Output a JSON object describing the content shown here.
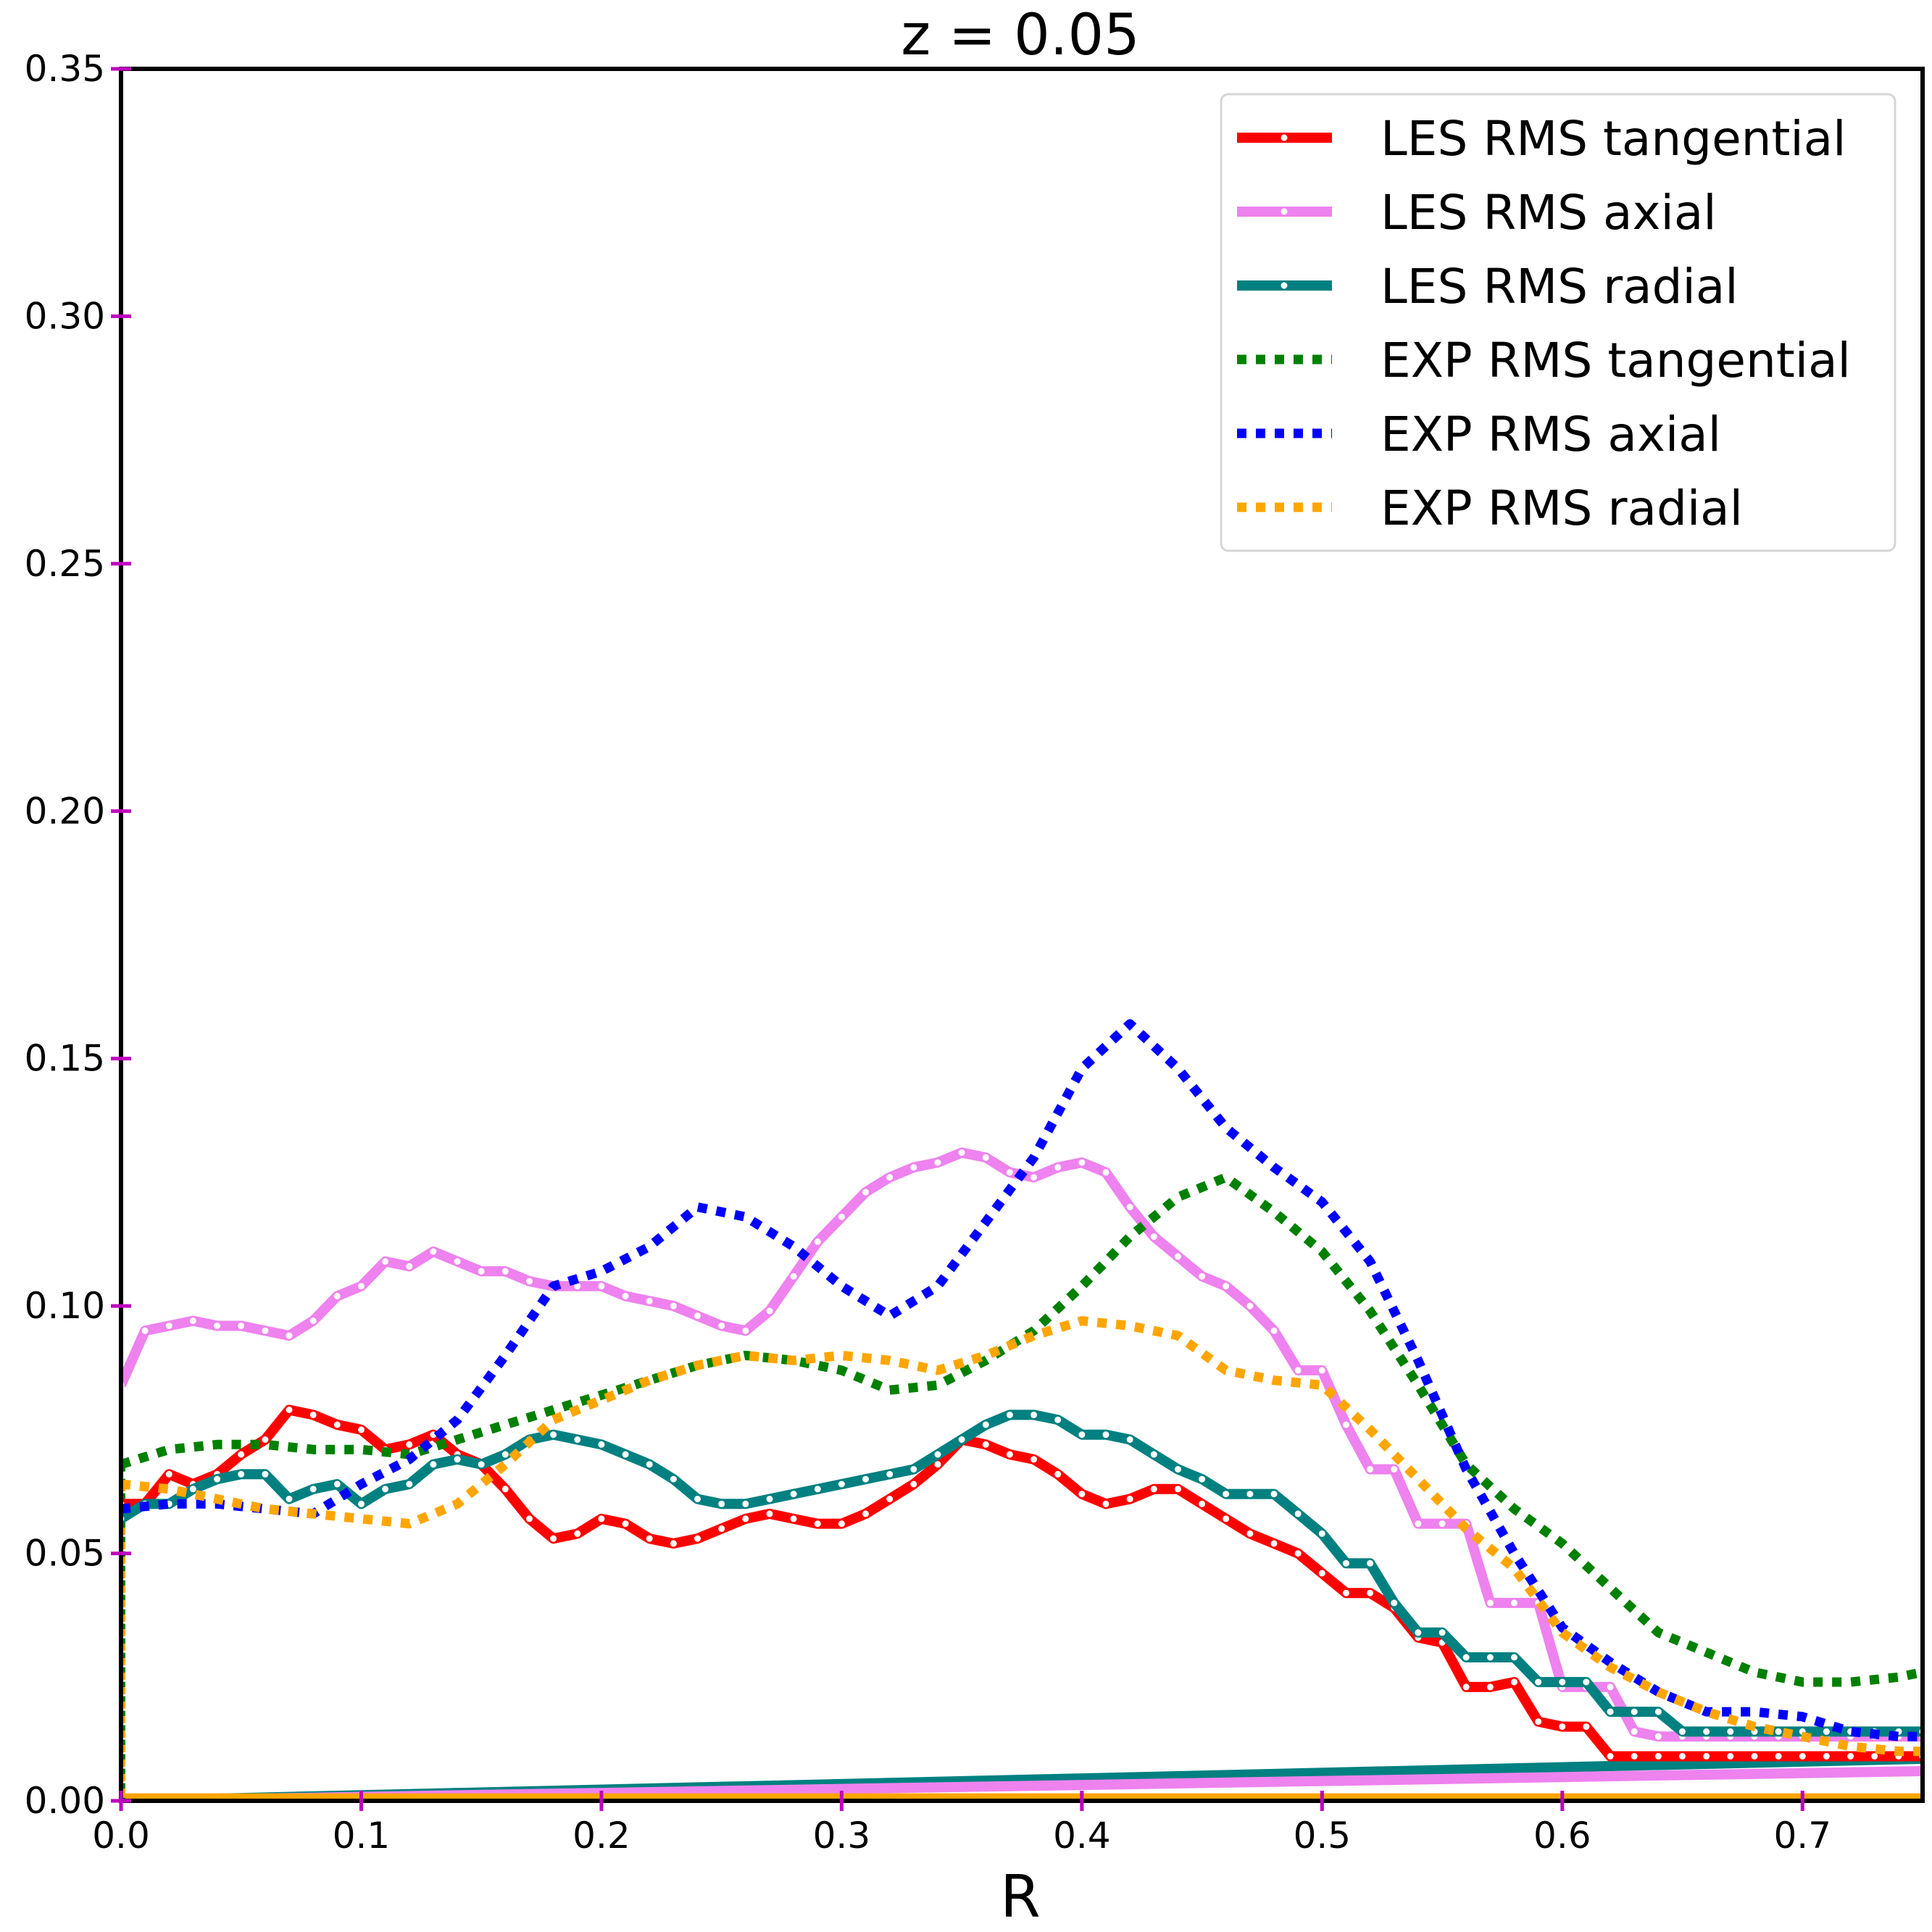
{
  "chart_data": {
    "type": "line",
    "title": "z = 0.05",
    "xlabel": "R",
    "ylabel": "",
    "xlim": [
      0,
      0.75
    ],
    "ylim": [
      0,
      0.35
    ],
    "x_ticks": [
      "0.0",
      "0.1",
      "0.2",
      "0.3",
      "0.4",
      "0.5",
      "0.6",
      "0.7"
    ],
    "y_ticks": [
      "0.00",
      "0.05",
      "0.10",
      "0.15",
      "0.20",
      "0.25",
      "0.30",
      "0.35"
    ],
    "grid": false,
    "legend_position": "top-right",
    "series": [
      {
        "name": "LES RMS tangential",
        "color": "#ff0000",
        "style": "solid-dots",
        "x": [
          0.0,
          0.01,
          0.02,
          0.03,
          0.04,
          0.05,
          0.06,
          0.07,
          0.08,
          0.09,
          0.1,
          0.11,
          0.12,
          0.13,
          0.14,
          0.15,
          0.16,
          0.17,
          0.18,
          0.19,
          0.2,
          0.21,
          0.22,
          0.23,
          0.24,
          0.25,
          0.26,
          0.27,
          0.28,
          0.29,
          0.3,
          0.31,
          0.32,
          0.33,
          0.34,
          0.35,
          0.36,
          0.37,
          0.38,
          0.39,
          0.4,
          0.41,
          0.42,
          0.43,
          0.44,
          0.45,
          0.46,
          0.47,
          0.48,
          0.49,
          0.5,
          0.51,
          0.52,
          0.53,
          0.54,
          0.55,
          0.56,
          0.57,
          0.58,
          0.59,
          0.6,
          0.61,
          0.62,
          0.63,
          0.64,
          0.65,
          0.66,
          0.67,
          0.68,
          0.69,
          0.7,
          0.71,
          0.72,
          0.73,
          0.74,
          0.75
        ],
        "y": [
          0.06,
          0.06,
          0.066,
          0.064,
          0.066,
          0.07,
          0.073,
          0.079,
          0.078,
          0.076,
          0.075,
          0.071,
          0.072,
          0.074,
          0.07,
          0.068,
          0.063,
          0.057,
          0.053,
          0.054,
          0.057,
          0.056,
          0.053,
          0.052,
          0.053,
          0.055,
          0.057,
          0.058,
          0.057,
          0.056,
          0.056,
          0.058,
          0.061,
          0.064,
          0.068,
          0.073,
          0.072,
          0.07,
          0.069,
          0.066,
          0.062,
          0.06,
          0.061,
          0.063,
          0.063,
          0.06,
          0.057,
          0.054,
          0.052,
          0.05,
          0.046,
          0.042,
          0.042,
          0.039,
          0.033,
          0.032,
          0.023,
          0.023,
          0.024,
          0.016,
          0.015,
          0.015,
          0.009,
          0.009,
          0.009,
          0.009,
          0.009,
          0.009,
          0.009,
          0.009,
          0.009,
          0.009,
          0.009,
          0.009,
          0.009,
          0.009
        ]
      },
      {
        "name": "LES RMS axial",
        "color": "#ee82ee",
        "style": "solid-dots",
        "x": [
          0.0,
          0.01,
          0.02,
          0.03,
          0.04,
          0.05,
          0.06,
          0.07,
          0.08,
          0.09,
          0.1,
          0.11,
          0.12,
          0.13,
          0.14,
          0.15,
          0.16,
          0.17,
          0.18,
          0.19,
          0.2,
          0.21,
          0.22,
          0.23,
          0.24,
          0.25,
          0.26,
          0.27,
          0.28,
          0.29,
          0.3,
          0.31,
          0.32,
          0.33,
          0.34,
          0.35,
          0.36,
          0.37,
          0.38,
          0.39,
          0.4,
          0.41,
          0.42,
          0.43,
          0.44,
          0.45,
          0.46,
          0.47,
          0.48,
          0.49,
          0.5,
          0.51,
          0.52,
          0.53,
          0.54,
          0.55,
          0.56,
          0.57,
          0.58,
          0.59,
          0.6,
          0.61,
          0.62,
          0.63,
          0.64,
          0.65,
          0.66,
          0.67,
          0.68,
          0.69,
          0.7,
          0.71,
          0.72,
          0.73,
          0.74,
          0.75
        ],
        "y": [
          0.084,
          0.095,
          0.096,
          0.097,
          0.096,
          0.096,
          0.095,
          0.094,
          0.097,
          0.102,
          0.104,
          0.109,
          0.108,
          0.111,
          0.109,
          0.107,
          0.107,
          0.105,
          0.104,
          0.104,
          0.104,
          0.102,
          0.101,
          0.1,
          0.098,
          0.096,
          0.095,
          0.099,
          0.106,
          0.113,
          0.118,
          0.123,
          0.126,
          0.128,
          0.129,
          0.131,
          0.13,
          0.127,
          0.126,
          0.128,
          0.129,
          0.127,
          0.12,
          0.114,
          0.11,
          0.106,
          0.104,
          0.1,
          0.095,
          0.087,
          0.087,
          0.076,
          0.067,
          0.067,
          0.056,
          0.056,
          0.056,
          0.04,
          0.04,
          0.04,
          0.023,
          0.023,
          0.023,
          0.014,
          0.013,
          0.013,
          0.013,
          0.013,
          0.013,
          0.013,
          0.013,
          0.013,
          0.013,
          0.013,
          0.013,
          0.013
        ]
      },
      {
        "name": "LES RMS radial",
        "color": "#008080",
        "style": "solid-dots",
        "x": [
          0.0,
          0.01,
          0.02,
          0.03,
          0.04,
          0.05,
          0.06,
          0.07,
          0.08,
          0.09,
          0.1,
          0.11,
          0.12,
          0.13,
          0.14,
          0.15,
          0.16,
          0.17,
          0.18,
          0.19,
          0.2,
          0.21,
          0.22,
          0.23,
          0.24,
          0.25,
          0.26,
          0.27,
          0.28,
          0.29,
          0.3,
          0.31,
          0.32,
          0.33,
          0.34,
          0.35,
          0.36,
          0.37,
          0.38,
          0.39,
          0.4,
          0.41,
          0.42,
          0.43,
          0.44,
          0.45,
          0.46,
          0.47,
          0.48,
          0.49,
          0.5,
          0.51,
          0.52,
          0.53,
          0.54,
          0.55,
          0.56,
          0.57,
          0.58,
          0.59,
          0.6,
          0.61,
          0.62,
          0.63,
          0.64,
          0.65,
          0.66,
          0.67,
          0.68,
          0.69,
          0.7,
          0.71,
          0.72,
          0.73,
          0.74,
          0.75
        ],
        "y": [
          0.057,
          0.06,
          0.06,
          0.063,
          0.065,
          0.066,
          0.066,
          0.061,
          0.063,
          0.064,
          0.06,
          0.063,
          0.064,
          0.068,
          0.069,
          0.068,
          0.07,
          0.073,
          0.074,
          0.073,
          0.072,
          0.07,
          0.068,
          0.065,
          0.061,
          0.06,
          0.06,
          0.061,
          0.062,
          0.063,
          0.064,
          0.065,
          0.066,
          0.067,
          0.07,
          0.073,
          0.076,
          0.078,
          0.078,
          0.077,
          0.074,
          0.074,
          0.073,
          0.07,
          0.067,
          0.065,
          0.062,
          0.062,
          0.062,
          0.058,
          0.054,
          0.048,
          0.048,
          0.04,
          0.034,
          0.034,
          0.029,
          0.029,
          0.029,
          0.024,
          0.024,
          0.024,
          0.018,
          0.018,
          0.018,
          0.014,
          0.014,
          0.014,
          0.014,
          0.014,
          0.014,
          0.014,
          0.014,
          0.014,
          0.014,
          0.014
        ]
      },
      {
        "name": "EXP RMS tangential",
        "color": "#008000",
        "style": "dotted",
        "x": [
          0.0,
          0.02,
          0.04,
          0.06,
          0.08,
          0.1,
          0.12,
          0.14,
          0.16,
          0.18,
          0.2,
          0.22,
          0.24,
          0.26,
          0.28,
          0.3,
          0.32,
          0.34,
          0.36,
          0.38,
          0.4,
          0.42,
          0.44,
          0.46,
          0.48,
          0.5,
          0.52,
          0.54,
          0.56,
          0.58,
          0.6,
          0.62,
          0.64,
          0.66,
          0.68,
          0.7,
          0.72,
          0.74,
          0.75
        ],
        "y": [
          0.068,
          0.071,
          0.072,
          0.072,
          0.071,
          0.071,
          0.07,
          0.073,
          0.076,
          0.079,
          0.082,
          0.085,
          0.088,
          0.09,
          0.089,
          0.087,
          0.083,
          0.084,
          0.089,
          0.095,
          0.104,
          0.114,
          0.122,
          0.126,
          0.119,
          0.111,
          0.099,
          0.084,
          0.068,
          0.059,
          0.052,
          0.043,
          0.034,
          0.03,
          0.026,
          0.024,
          0.024,
          0.025,
          0.026
        ]
      },
      {
        "name": "EXP RMS axial",
        "color": "#0000ff",
        "style": "dotted",
        "x": [
          0.0,
          0.02,
          0.04,
          0.06,
          0.08,
          0.1,
          0.12,
          0.14,
          0.16,
          0.18,
          0.2,
          0.22,
          0.24,
          0.26,
          0.28,
          0.3,
          0.32,
          0.34,
          0.36,
          0.38,
          0.4,
          0.42,
          0.44,
          0.46,
          0.48,
          0.5,
          0.52,
          0.54,
          0.56,
          0.58,
          0.6,
          0.62,
          0.64,
          0.66,
          0.68,
          0.7,
          0.72,
          0.74,
          0.75
        ],
        "y": [
          0.059,
          0.06,
          0.06,
          0.059,
          0.058,
          0.064,
          0.069,
          0.077,
          0.09,
          0.104,
          0.107,
          0.112,
          0.12,
          0.118,
          0.112,
          0.104,
          0.098,
          0.104,
          0.117,
          0.13,
          0.148,
          0.157,
          0.148,
          0.136,
          0.128,
          0.121,
          0.109,
          0.089,
          0.067,
          0.05,
          0.035,
          0.028,
          0.022,
          0.018,
          0.018,
          0.017,
          0.014,
          0.013,
          0.013
        ]
      },
      {
        "name": "EXP RMS radial",
        "color": "#ffa500",
        "style": "dotted",
        "x": [
          0.0,
          0.02,
          0.04,
          0.06,
          0.08,
          0.1,
          0.12,
          0.14,
          0.16,
          0.18,
          0.2,
          0.22,
          0.24,
          0.26,
          0.28,
          0.3,
          0.32,
          0.34,
          0.36,
          0.38,
          0.4,
          0.42,
          0.44,
          0.46,
          0.48,
          0.5,
          0.52,
          0.54,
          0.56,
          0.58,
          0.6,
          0.62,
          0.64,
          0.66,
          0.68,
          0.7,
          0.72,
          0.74,
          0.75
        ],
        "y": [
          0.064,
          0.063,
          0.061,
          0.059,
          0.058,
          0.057,
          0.056,
          0.06,
          0.068,
          0.077,
          0.081,
          0.085,
          0.088,
          0.09,
          0.089,
          0.09,
          0.089,
          0.087,
          0.09,
          0.094,
          0.097,
          0.096,
          0.094,
          0.087,
          0.085,
          0.084,
          0.075,
          0.065,
          0.055,
          0.047,
          0.034,
          0.027,
          0.022,
          0.018,
          0.015,
          0.013,
          0.011,
          0.01,
          0.01
        ]
      }
    ],
    "baselines": [
      {
        "color": "#008080",
        "x": [
          0.0,
          0.75
        ],
        "y": [
          0.0,
          0.0085
        ]
      },
      {
        "color": "#ee82ee",
        "x": [
          0.0,
          0.75
        ],
        "y": [
          0.0,
          0.006
        ]
      },
      {
        "color": "#ffa500",
        "x": [
          0.0,
          0.75
        ],
        "y": [
          0.0005,
          0.0005
        ]
      }
    ]
  }
}
